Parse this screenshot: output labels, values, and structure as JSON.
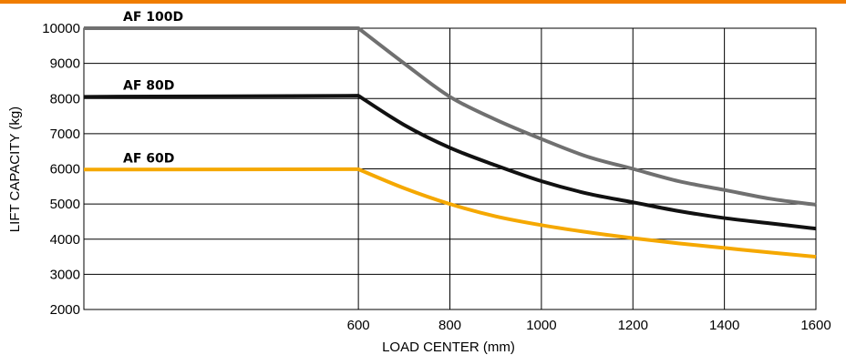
{
  "colors": {
    "top_bar": "#f07d00",
    "grid": "#000000",
    "background": "#ffffff"
  },
  "chart_data": {
    "type": "line",
    "xlabel": "LOAD CENTER (mm)",
    "ylabel": "LIFT CAPACITY (kg)",
    "xlim": [
      0,
      1600
    ],
    "ylim": [
      2000,
      10000
    ],
    "x_ticks": [
      600,
      800,
      1000,
      1200,
      1400,
      1600
    ],
    "y_ticks": [
      2000,
      3000,
      4000,
      5000,
      6000,
      7000,
      8000,
      9000,
      10000
    ],
    "grid": true,
    "series": [
      {
        "name": "AF 100D",
        "color": "#707070",
        "points": [
          [
            0,
            10000
          ],
          [
            600,
            10000
          ],
          [
            700,
            9000
          ],
          [
            800,
            8050
          ],
          [
            900,
            7400
          ],
          [
            1000,
            6850
          ],
          [
            1100,
            6350
          ],
          [
            1200,
            6000
          ],
          [
            1300,
            5650
          ],
          [
            1400,
            5400
          ],
          [
            1500,
            5150
          ],
          [
            1600,
            4980
          ]
        ]
      },
      {
        "name": "AF 80D",
        "color": "#111111",
        "points": [
          [
            0,
            8050
          ],
          [
            600,
            8080
          ],
          [
            700,
            7250
          ],
          [
            800,
            6600
          ],
          [
            900,
            6100
          ],
          [
            1000,
            5650
          ],
          [
            1100,
            5300
          ],
          [
            1200,
            5050
          ],
          [
            1300,
            4800
          ],
          [
            1400,
            4600
          ],
          [
            1500,
            4450
          ],
          [
            1600,
            4300
          ]
        ]
      },
      {
        "name": "AF 60D",
        "color": "#f5a800",
        "points": [
          [
            0,
            5980
          ],
          [
            600,
            5990
          ],
          [
            700,
            5450
          ],
          [
            800,
            5000
          ],
          [
            900,
            4650
          ],
          [
            1000,
            4400
          ],
          [
            1100,
            4200
          ],
          [
            1200,
            4030
          ],
          [
            1300,
            3880
          ],
          [
            1400,
            3750
          ],
          [
            1500,
            3620
          ],
          [
            1600,
            3500
          ]
        ]
      }
    ]
  }
}
